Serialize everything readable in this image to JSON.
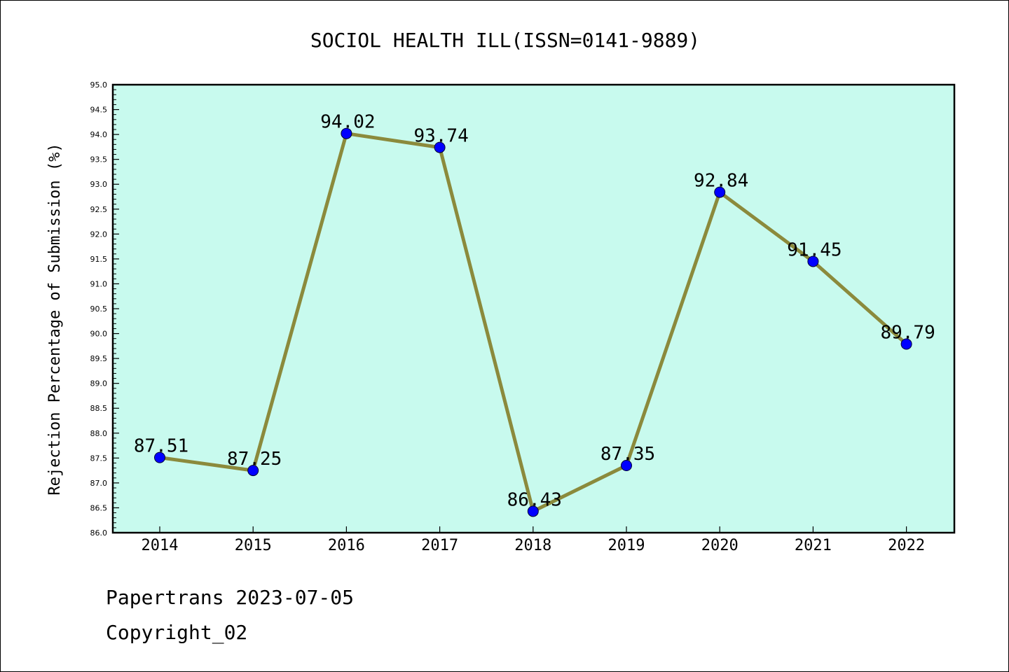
{
  "chart_data": {
    "type": "line",
    "title": "SOCIOL HEALTH ILL(ISSN=0141-9889)",
    "xlabel": "",
    "ylabel": "Rejection Percentage of Submission (%)",
    "categories": [
      "2014",
      "2015",
      "2016",
      "2017",
      "2018",
      "2019",
      "2020",
      "2021",
      "2022"
    ],
    "series": [
      {
        "values": [
          87.51,
          87.25,
          94.02,
          93.74,
          86.43,
          87.35,
          92.84,
          91.45,
          89.79
        ],
        "labels": [
          "87.51",
          "87.25",
          "94.02",
          "93.74",
          "86.43",
          "87.35",
          "92.84",
          "91.45",
          "89.79"
        ]
      }
    ],
    "ylim": [
      86.0,
      95.0
    ],
    "yticks": [
      "86.0",
      "86.5",
      "87.0",
      "87.5",
      "88.0",
      "88.5",
      "89.0",
      "89.5",
      "90.0",
      "90.5",
      "91.0",
      "91.5",
      "92.0",
      "92.5",
      "93.0",
      "93.5",
      "94.0",
      "94.5",
      "95.0"
    ],
    "grid": false,
    "colors": {
      "plot_background": "#c8faee",
      "line": "#8b8a3c",
      "marker": "#0000ff"
    }
  },
  "footer": {
    "line1": "Papertrans 2023-07-05",
    "line2": "Copyright_02"
  }
}
